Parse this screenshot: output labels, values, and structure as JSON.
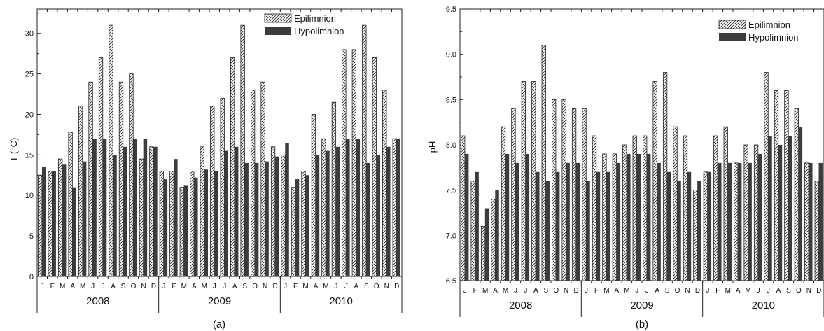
{
  "months": [
    "J",
    "F",
    "M",
    "A",
    "M",
    "J",
    "J",
    "A",
    "S",
    "O",
    "N",
    "D"
  ],
  "years": [
    "2008",
    "2009",
    "2010"
  ],
  "legend": {
    "epi": "Epilimnion",
    "hypo": "Hypolimnion"
  },
  "colors": {
    "epi_fill": "#ffffff",
    "epi_stroke": "#222222",
    "hypo_fill": "#3c3c3c"
  },
  "chart_data": [
    {
      "type": "bar",
      "panel_label": "(a)",
      "ylabel": "T (°C)",
      "ylim": [
        0,
        33
      ],
      "yticks": [
        0,
        5,
        10,
        15,
        20,
        25,
        30
      ],
      "ytick_labels": [
        "0",
        "5",
        "10",
        "15",
        "20",
        "25",
        "30"
      ],
      "legend_position": "top-right",
      "series": [
        {
          "name": "Epilimnion",
          "values": [
            12.5,
            13,
            14.5,
            17.8,
            21,
            24,
            27,
            31,
            24,
            25,
            14.5,
            16,
            13,
            13,
            11,
            13,
            16,
            21,
            22,
            27,
            31,
            23,
            24,
            16,
            15,
            11,
            13,
            20,
            17,
            21.5,
            28,
            28,
            31,
            27,
            23,
            17
          ]
        },
        {
          "name": "Hypolimnion",
          "values": [
            13.5,
            13,
            13.8,
            11,
            14.2,
            17,
            17,
            15,
            16,
            17,
            17,
            16,
            12,
            14.5,
            11.2,
            12.2,
            13.2,
            13,
            15.5,
            16,
            14,
            14,
            14.2,
            14.8,
            16.5,
            12,
            12.5,
            15,
            15.5,
            16,
            17,
            17,
            14,
            15,
            16,
            17
          ]
        }
      ]
    },
    {
      "type": "bar",
      "panel_label": "(b)",
      "ylabel": "pH",
      "ylim": [
        6.5,
        9.5
      ],
      "yticks": [
        6.5,
        7.0,
        7.5,
        8.0,
        8.5,
        9.0,
        9.5
      ],
      "ytick_labels": [
        "6.5",
        "7.0",
        "7.5",
        "8.0",
        "8.5",
        "9.0",
        "9.5"
      ],
      "legend_position": "top-right",
      "series": [
        {
          "name": "Epilimnion",
          "values": [
            8.1,
            7.6,
            7.1,
            7.4,
            8.2,
            8.4,
            8.7,
            8.7,
            9.1,
            8.5,
            8.5,
            8.4,
            8.4,
            8.1,
            7.9,
            7.9,
            8.0,
            8.1,
            8.1,
            8.7,
            8.8,
            8.2,
            8.1,
            7.5,
            7.7,
            8.1,
            8.2,
            7.8,
            8.0,
            8.0,
            8.8,
            8.6,
            8.6,
            8.4,
            7.8,
            7.6
          ]
        },
        {
          "name": "Hypolimnion",
          "values": [
            7.9,
            7.7,
            7.3,
            7.5,
            7.9,
            7.8,
            7.9,
            7.7,
            7.6,
            7.7,
            7.8,
            7.8,
            7.6,
            7.7,
            7.7,
            7.8,
            7.9,
            7.9,
            7.9,
            7.8,
            7.7,
            7.6,
            7.7,
            7.6,
            7.7,
            7.8,
            7.8,
            7.8,
            7.8,
            7.9,
            8.1,
            8.0,
            8.1,
            8.2,
            7.8,
            7.8
          ]
        }
      ]
    }
  ]
}
